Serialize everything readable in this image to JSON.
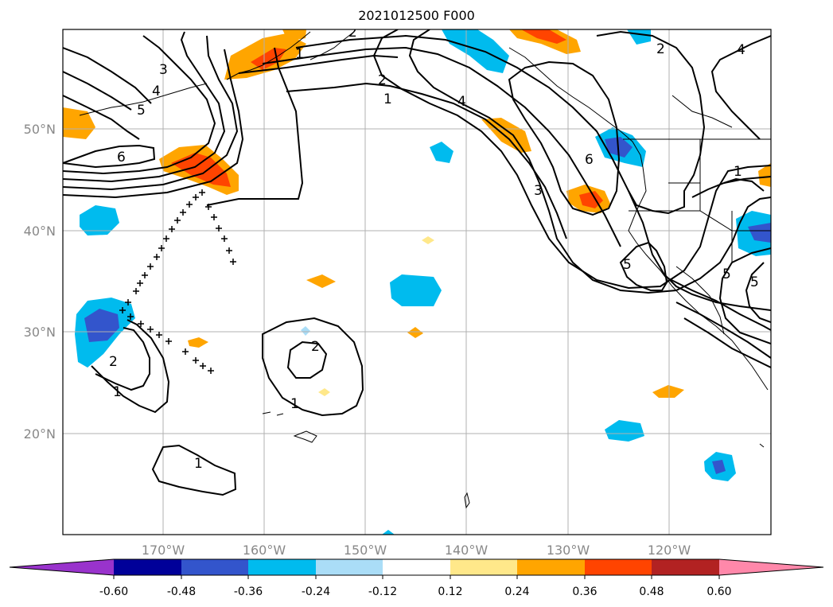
{
  "title": "2021012500 F000",
  "map": {
    "lat_labels": [
      "50°N",
      "40°N",
      "30°N",
      "20°N"
    ],
    "lon_labels": [
      "170°W",
      "160°W",
      "150°W",
      "140°W",
      "130°W",
      "120°W"
    ],
    "contour_labels": [
      "3",
      "4",
      "5",
      "6",
      "1",
      "2",
      "1",
      "2",
      "4",
      "6",
      "3",
      "5",
      "2",
      "4",
      "1",
      "5",
      "5",
      "2",
      "1",
      "2",
      "1",
      "1"
    ]
  },
  "colorbar": {
    "tick_labels": [
      "-0.60",
      "-0.48",
      "-0.36",
      "-0.24",
      "-0.12",
      "0.12",
      "0.24",
      "0.36",
      "0.48",
      "0.60"
    ],
    "colors": {
      "neg_extend": "#9933cc",
      "neg_060": "#000099",
      "neg_048": "#3355cc",
      "neg_036": "#00bbee",
      "neg_024": "#aaddf7",
      "neutral": "#ffffff",
      "pos_012": "#ffe88a",
      "pos_024": "#ffa500",
      "pos_036": "#ff4400",
      "pos_048": "#b22222",
      "pos_extend": "#ff88aa"
    }
  }
}
